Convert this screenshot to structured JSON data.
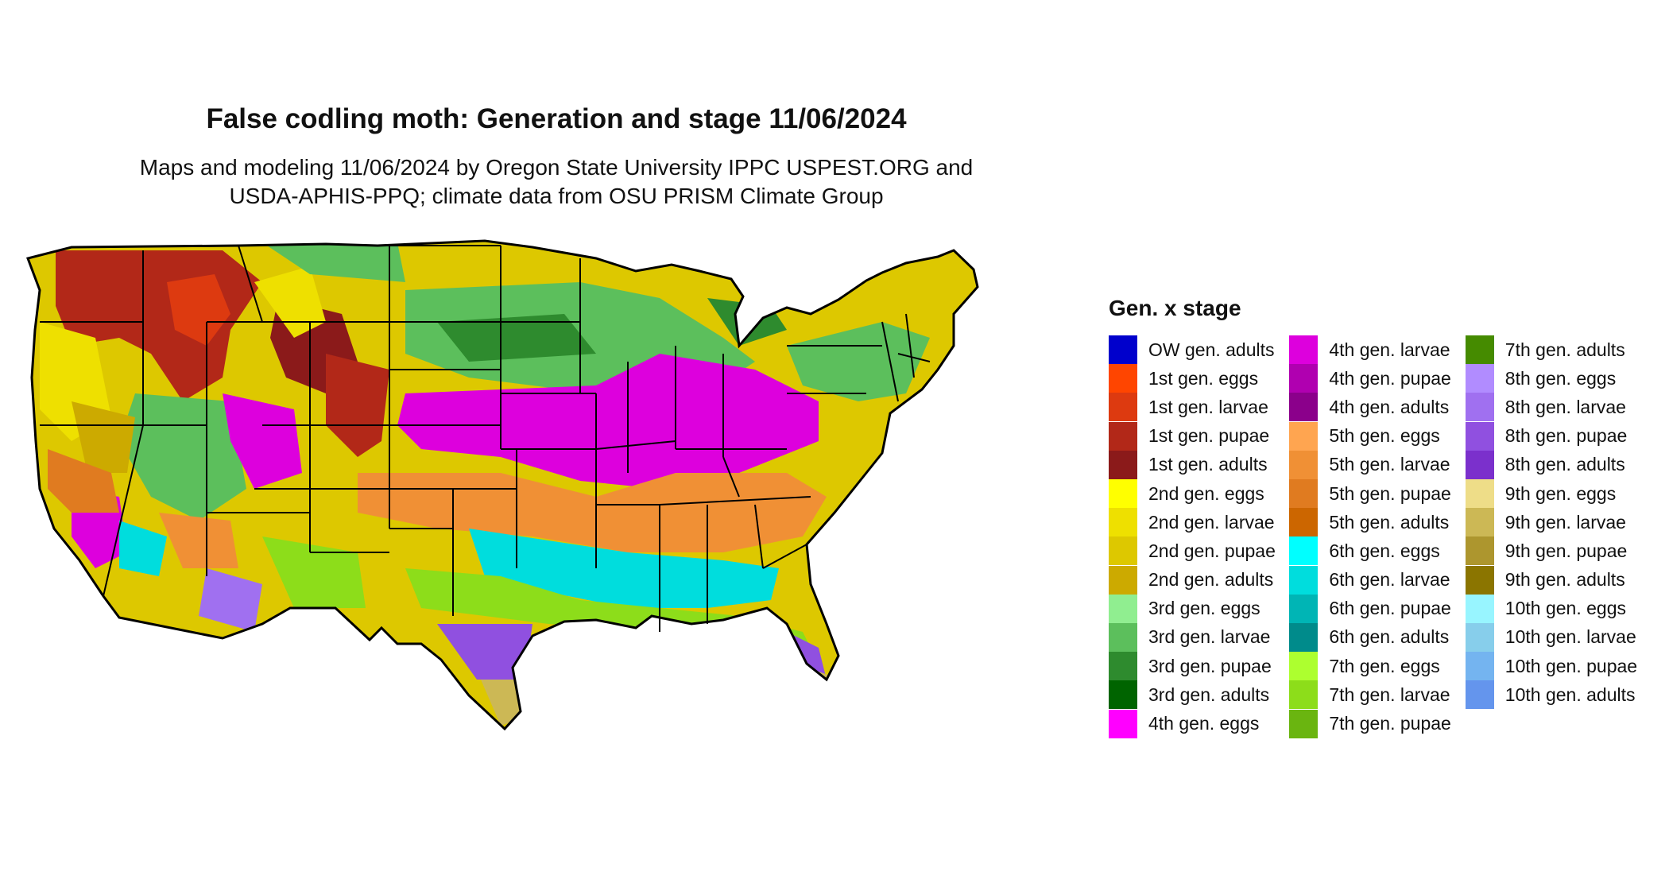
{
  "title": "False codling moth: Generation and stage 11/06/2024",
  "subtitle_line1": "Maps and modeling 11/06/2024 by Oregon State University IPPC USPEST.ORG and",
  "subtitle_line2": "USDA-APHIS-PPQ; climate data from OSU PRISM Climate Group",
  "legend": {
    "title": "Gen. x stage",
    "columns": [
      [
        {
          "label": "OW gen. adults",
          "color": "#0000cc"
        },
        {
          "label": "1st gen. eggs",
          "color": "#ff4500"
        },
        {
          "label": "1st gen. larvae",
          "color": "#dd3a10"
        },
        {
          "label": "1st gen. pupae",
          "color": "#b22818"
        },
        {
          "label": "1st gen. adults",
          "color": "#8b1a1a"
        },
        {
          "label": "2nd gen. eggs",
          "color": "#ffff00"
        },
        {
          "label": "2nd gen. larvae",
          "color": "#eee000"
        },
        {
          "label": "2nd gen. pupae",
          "color": "#ddc800"
        },
        {
          "label": "2nd gen. adults",
          "color": "#ccaa00"
        },
        {
          "label": "3rd gen. eggs",
          "color": "#90ee90"
        },
        {
          "label": "3rd gen. larvae",
          "color": "#5cbf5c"
        },
        {
          "label": "3rd gen. pupae",
          "color": "#2e8b2e"
        },
        {
          "label": "3rd gen. adults",
          "color": "#006400"
        },
        {
          "label": "4th gen. eggs",
          "color": "#ff00ff"
        }
      ],
      [
        {
          "label": "4th gen. larvae",
          "color": "#dd00dd"
        },
        {
          "label": "4th gen. pupae",
          "color": "#b000b0"
        },
        {
          "label": "4th gen. adults",
          "color": "#8b008b"
        },
        {
          "label": "5th gen. eggs",
          "color": "#ffa550"
        },
        {
          "label": "5th gen. larvae",
          "color": "#f09035"
        },
        {
          "label": "5th gen. pupae",
          "color": "#e07b20"
        },
        {
          "label": "5th gen. adults",
          "color": "#cc6600"
        },
        {
          "label": "6th gen. eggs",
          "color": "#00ffff"
        },
        {
          "label": "6th gen. larvae",
          "color": "#00dddd"
        },
        {
          "label": "6th gen. pupae",
          "color": "#00b5b5"
        },
        {
          "label": "6th gen. adults",
          "color": "#008b8b"
        },
        {
          "label": "7th gen. eggs",
          "color": "#adff2f"
        },
        {
          "label": "7th gen. larvae",
          "color": "#8ddd1a"
        },
        {
          "label": "7th gen. pupae",
          "color": "#6ab510"
        }
      ],
      [
        {
          "label": "7th gen. adults",
          "color": "#458b00"
        },
        {
          "label": "8th gen. eggs",
          "color": "#b18cff"
        },
        {
          "label": "8th gen. larvae",
          "color": "#a070f0"
        },
        {
          "label": "8th gen. pupae",
          "color": "#9050e0"
        },
        {
          "label": "8th gen. adults",
          "color": "#7b30cc"
        },
        {
          "label": "9th gen. eggs",
          "color": "#eedd88"
        },
        {
          "label": "9th gen. larvae",
          "color": "#ccb855"
        },
        {
          "label": "9th gen. pupae",
          "color": "#ad962e"
        },
        {
          "label": "9th gen. adults",
          "color": "#8b7500"
        },
        {
          "label": "10th gen. eggs",
          "color": "#98f5ff"
        },
        {
          "label": "10th gen. larvae",
          "color": "#87ceeb"
        },
        {
          "label": "10th gen. pupae",
          "color": "#74b4f0"
        },
        {
          "label": "10th gen. adults",
          "color": "#6495ed"
        }
      ]
    ]
  }
}
